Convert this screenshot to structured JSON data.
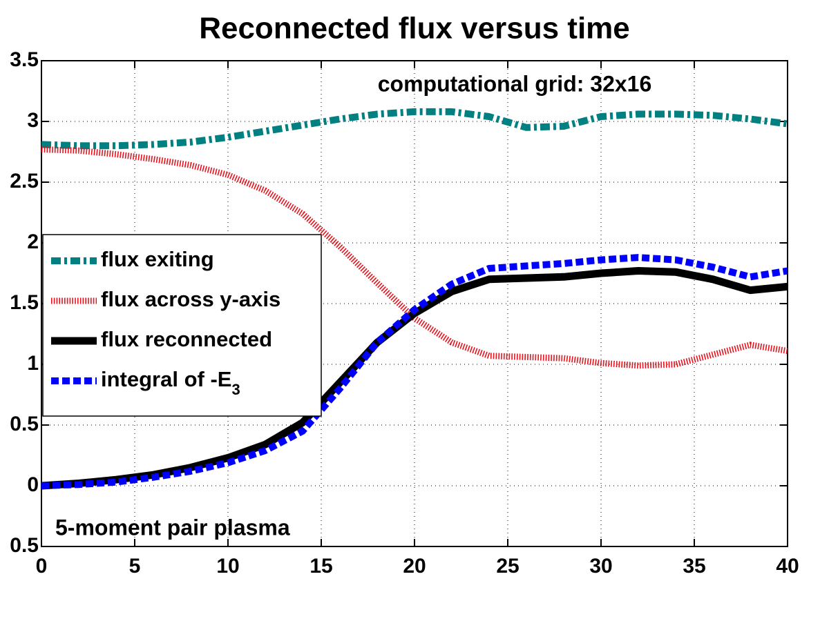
{
  "chart_data": {
    "type": "line",
    "title": "Reconnected flux versus time",
    "annotations": [
      "computational grid: 32x16",
      "5-moment pair plasma"
    ],
    "x": [
      0,
      2,
      4,
      6,
      8,
      10,
      12,
      14,
      16,
      18,
      20,
      22,
      24,
      26,
      28,
      30,
      32,
      34,
      36,
      38,
      40
    ],
    "series": [
      {
        "name": "flux exiting",
        "color": "#008080",
        "style": "dash-dot",
        "values": [
          2.81,
          2.8,
          2.8,
          2.81,
          2.83,
          2.87,
          2.92,
          2.97,
          3.02,
          3.06,
          3.08,
          3.08,
          3.04,
          2.95,
          2.96,
          3.04,
          3.06,
          3.06,
          3.05,
          3.02,
          2.98
        ]
      },
      {
        "name": "flux across y-axis",
        "color": "#e8101a",
        "style": "dotted",
        "values": [
          2.77,
          2.76,
          2.73,
          2.69,
          2.64,
          2.56,
          2.43,
          2.24,
          1.97,
          1.67,
          1.38,
          1.18,
          1.07,
          1.06,
          1.05,
          1.01,
          0.99,
          1.0,
          1.08,
          1.16,
          1.11
        ]
      },
      {
        "name": "flux reconnected",
        "color": "#000000",
        "style": "solid",
        "values": [
          0.0,
          0.02,
          0.05,
          0.09,
          0.15,
          0.23,
          0.34,
          0.52,
          0.85,
          1.18,
          1.42,
          1.6,
          1.7,
          1.71,
          1.72,
          1.75,
          1.77,
          1.76,
          1.7,
          1.61,
          1.64
        ]
      },
      {
        "name": "integral of -E",
        "name_sub": "3",
        "color": "#0000ff",
        "style": "dashed",
        "values": [
          0.0,
          0.01,
          0.03,
          0.07,
          0.12,
          0.19,
          0.29,
          0.45,
          0.8,
          1.18,
          1.45,
          1.66,
          1.79,
          1.81,
          1.83,
          1.86,
          1.88,
          1.86,
          1.8,
          1.72,
          1.77
        ]
      }
    ],
    "xlim": [
      0,
      40
    ],
    "xticks": [
      0,
      5,
      10,
      15,
      20,
      25,
      30,
      35,
      40
    ],
    "ylim": [
      -0.5,
      3.5
    ],
    "yticks": [
      {
        "value": -0.5,
        "label": "0.5"
      },
      0,
      0.5,
      1,
      1.5,
      2,
      2.5,
      3,
      3.5
    ],
    "grid": true,
    "legend_loc": "west"
  }
}
